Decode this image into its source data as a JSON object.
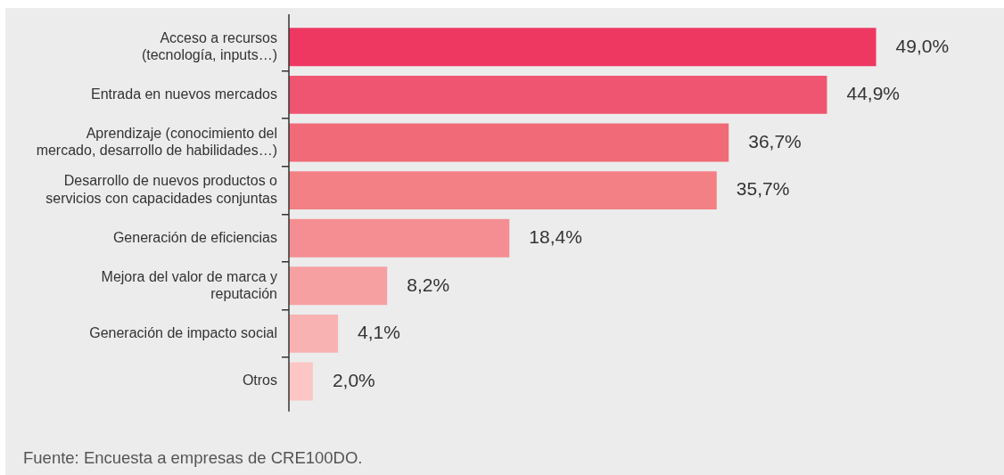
{
  "chart_data": {
    "type": "bar",
    "orientation": "horizontal",
    "categories": [
      "Acceso a recursos\n(tecnología, inputs…)",
      "Entrada en nuevos mercados",
      "Aprendizaje (conocimiento del\nmercado, desarrollo de habilidades…)",
      "Desarrollo de nuevos productos o\nservicios con capacidades conjuntas",
      "Generación de eficiencias",
      "Mejora del valor de marca y\nreputación",
      "Generación de impacto social",
      "Otros"
    ],
    "values": [
      49.0,
      44.9,
      36.7,
      35.7,
      18.4,
      8.2,
      4.1,
      2.0
    ],
    "colors": [
      "#ee3862",
      "#ef5570",
      "#f06a77",
      "#f28085",
      "#f48e92",
      "#f6a0a2",
      "#f8b2b2",
      "#fbc6c4"
    ],
    "value_labels": [
      "49,0%",
      "44,9%",
      "36,7%",
      "35,7%",
      "18,4%",
      "8,2%",
      "4,1%",
      "2,0%"
    ],
    "tick_labels": "y",
    "annotations": [
      "Fuente: Encuesta a empresas de CRE100DO."
    ]
  }
}
